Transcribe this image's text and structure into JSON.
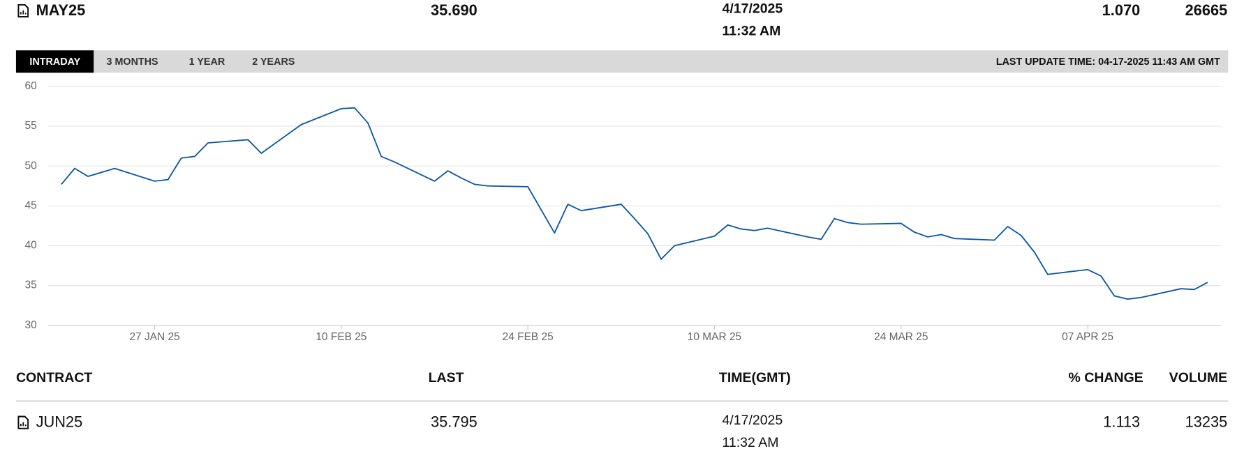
{
  "header": {
    "contract": "MAY25",
    "last": "35.690",
    "date": "4/17/2025",
    "time": "11:32 AM",
    "change": "1.070",
    "volume": "26665"
  },
  "tabs": [
    "INTRADAY",
    "3 MONTHS",
    "1 YEAR",
    "2 YEARS"
  ],
  "last_update": "LAST UPDATE TIME: 04-17-2025 11:43 AM GMT",
  "chart_data": {
    "type": "line",
    "x": [
      "2025-01-20",
      "2025-01-21",
      "2025-01-22",
      "2025-01-24",
      "2025-01-27",
      "2025-01-28",
      "2025-01-29",
      "2025-01-30",
      "2025-01-31",
      "2025-02-03",
      "2025-02-04",
      "2025-02-05",
      "2025-02-07",
      "2025-02-10",
      "2025-02-11",
      "2025-02-12",
      "2025-02-13",
      "2025-02-14",
      "2025-02-17",
      "2025-02-18",
      "2025-02-19",
      "2025-02-20",
      "2025-02-21",
      "2025-02-24",
      "2025-02-26",
      "2025-02-27",
      "2025-02-28",
      "2025-03-03",
      "2025-03-04",
      "2025-03-05",
      "2025-03-06",
      "2025-03-07",
      "2025-03-10",
      "2025-03-11",
      "2025-03-12",
      "2025-03-13",
      "2025-03-14",
      "2025-03-17",
      "2025-03-18",
      "2025-03-19",
      "2025-03-20",
      "2025-03-21",
      "2025-03-24",
      "2025-03-25",
      "2025-03-26",
      "2025-03-27",
      "2025-03-28",
      "2025-03-31",
      "2025-04-01",
      "2025-04-02",
      "2025-04-03",
      "2025-04-04",
      "2025-04-07",
      "2025-04-08",
      "2025-04-09",
      "2025-04-10",
      "2025-04-11",
      "2025-04-14",
      "2025-04-15",
      "2025-04-16"
    ],
    "series": [
      {
        "name": "MAY25",
        "color": "#0a57a4",
        "values": [
          47.7,
          49.7,
          48.7,
          49.7,
          48.1,
          48.3,
          51.0,
          51.2,
          52.9,
          53.3,
          51.6,
          52.8,
          55.2,
          57.2,
          57.3,
          55.4,
          51.2,
          50.5,
          48.1,
          49.4,
          48.5,
          47.7,
          47.5,
          47.4,
          41.6,
          45.2,
          44.4,
          45.2,
          43.4,
          41.5,
          38.3,
          40.0,
          41.2,
          42.6,
          42.1,
          41.9,
          42.2,
          41.1,
          40.8,
          43.4,
          42.9,
          42.7,
          42.8,
          41.7,
          41.1,
          41.4,
          40.9,
          40.7,
          42.4,
          41.3,
          39.2,
          36.4,
          37.0,
          36.2,
          33.7,
          33.3,
          33.5,
          34.6,
          34.5,
          35.4
        ]
      }
    ],
    "xlim": [
      "2025-01-19",
      "2025-04-17"
    ],
    "xticks": [
      {
        "value": "2025-01-27",
        "label": "27 JAN 25"
      },
      {
        "value": "2025-02-10",
        "label": "10 FEB 25"
      },
      {
        "value": "2025-02-24",
        "label": "24 FEB 25"
      },
      {
        "value": "2025-03-10",
        "label": "10 MAR 25"
      },
      {
        "value": "2025-03-24",
        "label": "24 MAR 25"
      },
      {
        "value": "2025-04-07",
        "label": "07 APR 25"
      }
    ],
    "ylim": [
      30,
      60
    ],
    "yticks": [
      30,
      35,
      40,
      45,
      50,
      55,
      60
    ],
    "grid": true
  },
  "table": {
    "columns": [
      "CONTRACT",
      "LAST",
      "TIME(GMT)",
      "% CHANGE",
      "VOLUME"
    ],
    "rows": [
      [
        "JUN25",
        "35.795",
        "4/17/2025",
        "11:32 AM",
        "1.113",
        "13235"
      ]
    ]
  }
}
